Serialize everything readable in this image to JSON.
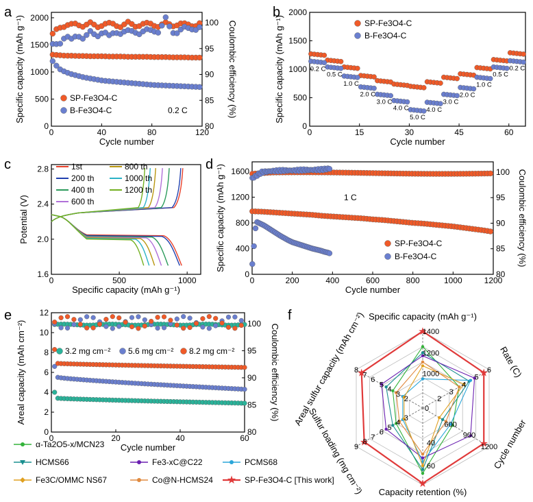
{
  "figure": {
    "panels": {
      "a": {
        "label": "a"
      },
      "b": {
        "label": "b"
      },
      "c": {
        "label": "c"
      },
      "d": {
        "label": "d"
      },
      "e": {
        "label": "e"
      },
      "f": {
        "label": "f"
      }
    },
    "legend_bottom": [
      {
        "text": "α-Ta2O5-x/MCN23",
        "color": "#33b33a",
        "marker": "circle"
      },
      {
        "text": "HCMS66",
        "color": "#1a8f8f",
        "marker": "triangle-down"
      },
      {
        "text": "Fe3-xC@C22",
        "color": "#6a1fb0",
        "marker": "circle"
      },
      {
        "text": "PCMS68",
        "color": "#2aa6d9",
        "marker": "circle"
      },
      {
        "text": "Fe3C/OMMC NS67",
        "color": "#e0a020",
        "marker": "diamond"
      },
      {
        "text": "Co@N-HCMS24",
        "color": "#e08a40",
        "marker": "circle"
      },
      {
        "text": "SP-Fe3O4-C [This work]",
        "color": "#e03a3a",
        "marker": "star"
      }
    ]
  },
  "chart_data": [
    {
      "id": "a",
      "type": "scatter",
      "xlabel": "Cycle number",
      "ylabel": "Specific capacity (mAh g⁻¹)",
      "y2label": "Coulombic efficiency (%)",
      "xlim": [
        0,
        120
      ],
      "ylim": [
        0,
        2100
      ],
      "y2lim": [
        80,
        102
      ],
      "xticks": [
        "0",
        "40",
        "80",
        "120"
      ],
      "yticks": [
        "0",
        "500",
        "1000",
        "1500",
        "2000"
      ],
      "y2ticks": [
        "80",
        "85",
        "90",
        "95",
        "100"
      ],
      "annotation": "0.2 C",
      "series": [
        {
          "name": "SP-Fe3O4-C",
          "color": "#f05a28",
          "x": [
            1,
            6,
            11,
            16,
            21,
            26,
            31,
            36,
            41,
            46,
            51,
            56,
            61,
            66,
            71,
            76,
            81,
            86,
            91,
            96,
            101,
            106,
            111,
            116,
            120
          ],
          "values": [
            1320,
            1310,
            1300,
            1300,
            1295,
            1295,
            1290,
            1290,
            1290,
            1285,
            1285,
            1285,
            1280,
            1280,
            1280,
            1280,
            1275,
            1275,
            1275,
            1270,
            1270,
            1270,
            1265,
            1265,
            1265
          ]
        },
        {
          "name": "B-Fe3O4-C",
          "color": "#6a7fcf",
          "x": [
            1,
            6,
            11,
            16,
            21,
            26,
            31,
            36,
            41,
            46,
            51,
            56,
            61,
            66,
            71,
            76,
            81,
            86,
            91,
            96,
            101,
            106,
            111,
            116,
            120
          ],
          "values": [
            1200,
            1060,
            1000,
            960,
            930,
            900,
            880,
            860,
            840,
            830,
            820,
            810,
            800,
            790,
            780,
            770,
            760,
            755,
            750,
            745,
            740,
            735,
            730,
            725,
            720
          ]
        },
        {
          "name": "SP-Fe3O4-C CE",
          "axis": "y2",
          "color": "#f05a28",
          "x": [
            1,
            6,
            11,
            16,
            21,
            26,
            31,
            36,
            41,
            46,
            51,
            56,
            61,
            66,
            71,
            76,
            81,
            86,
            91,
            96,
            101,
            106,
            111,
            116,
            120
          ],
          "values": [
            97.5,
            99.2,
            99.6,
            99.4,
            99.8,
            99.5,
            99.7,
            99.3,
            99.8,
            99.6,
            99.7,
            99.4,
            99.8,
            99.5,
            99.7,
            99.6,
            99.8,
            99.4,
            99.7,
            99.6,
            99.8,
            99.5,
            99.7,
            99.6,
            99.8
          ]
        },
        {
          "name": "B-Fe3O4-C CE",
          "axis": "y2",
          "color": "#6a7fcf",
          "x": [
            1,
            6,
            11,
            16,
            21,
            26,
            31,
            36,
            41,
            46,
            51,
            56,
            61,
            66,
            71,
            76,
            81,
            86,
            91,
            96,
            101,
            106,
            111,
            116,
            120
          ],
          "values": [
            95.5,
            96.0,
            97.5,
            96.5,
            97.8,
            97.0,
            98.0,
            97.6,
            98.3,
            97.2,
            98.5,
            97.9,
            98.2,
            98.6,
            97.8,
            98.4,
            98.8,
            98.1,
            100.7,
            98.5,
            98.0,
            98.9,
            99.2,
            98.6,
            99.0
          ]
        }
      ],
      "legend": [
        "SP-Fe3O4-C",
        "B-Fe3O4-C"
      ]
    },
    {
      "id": "b",
      "type": "scatter",
      "xlabel": "Cycle number",
      "ylabel": "Specific capacity (mAh g⁻¹)",
      "xlim": [
        0,
        65
      ],
      "ylim": [
        0,
        2000
      ],
      "xticks": [
        "0",
        "15",
        "30",
        "45",
        "60"
      ],
      "yticks": [
        "0",
        "500",
        "1000",
        "1500",
        "2000"
      ],
      "rates": [
        "0.2 C",
        "0.5 C",
        "1.0 C",
        "2.0 C",
        "3.0 C",
        "4.0 C",
        "5.0 C",
        "4.0 C",
        "3.0 C",
        "2.0 C",
        "1.0 C",
        "0.5 C",
        "0.2 C"
      ],
      "series": [
        {
          "name": "SP-Fe3O4-C",
          "color": "#f05a28",
          "segment_values": [
            1270,
            1160,
            1040,
            890,
            800,
            740,
            700,
            780,
            860,
            920,
            1030,
            1170,
            1290
          ]
        },
        {
          "name": "B-Fe3O4-C",
          "color": "#6a7fcf",
          "segment_values": [
            1140,
            1040,
            880,
            690,
            560,
            450,
            290,
            420,
            560,
            680,
            860,
            1040,
            1150
          ]
        }
      ],
      "legend": [
        "SP-Fe3O4-C",
        "B-Fe3O4-C"
      ]
    },
    {
      "id": "c",
      "type": "line",
      "xlabel": "Specific capacity (mAh g⁻¹)",
      "ylabel": "Potential (V)",
      "xlim": [
        0,
        1100
      ],
      "ylim": [
        1.6,
        2.85
      ],
      "xticks": [
        "0",
        "500",
        "1000"
      ],
      "yticks": [
        "1.6",
        "2.0",
        "2.4",
        "2.8"
      ],
      "series": [
        {
          "name": "1st",
          "color": "#e8402a",
          "capacity": 960
        },
        {
          "name": "200 th",
          "color": "#1f3fae",
          "capacity": 945
        },
        {
          "name": "400 th",
          "color": "#2a9a5a",
          "capacity": 860
        },
        {
          "name": "600 th",
          "color": "#b070d8",
          "capacity": 810
        },
        {
          "name": "800 th",
          "color": "#b8960e",
          "capacity": 760
        },
        {
          "name": "1000 th",
          "color": "#2ab2c6",
          "capacity": 720
        },
        {
          "name": "1200 th",
          "color": "#72b020",
          "capacity": 680
        }
      ]
    },
    {
      "id": "d",
      "type": "scatter",
      "xlabel": "Cycle number",
      "ylabel": "Specific capacity (mAh g⁻¹)",
      "y2label": "Coulombic efficiency (%)",
      "xlim": [
        0,
        1200
      ],
      "ylim": [
        0,
        1750
      ],
      "y2lim": [
        80,
        102
      ],
      "xticks": [
        "0",
        "200",
        "400",
        "600",
        "800",
        "1000",
        "1200"
      ],
      "yticks": [
        "0",
        "400",
        "800",
        "1200",
        "1600"
      ],
      "y2ticks": [
        "80",
        "85",
        "90",
        "95",
        "100"
      ],
      "annotation": "1 C",
      "series": [
        {
          "name": "SP-Fe3O4-C",
          "color": "#f05a28",
          "x": [
            1,
            50,
            100,
            150,
            200,
            250,
            300,
            350,
            400,
            450,
            500,
            550,
            600,
            650,
            700,
            750,
            800,
            850,
            900,
            950,
            1000,
            1050,
            1100,
            1150,
            1200
          ],
          "values": [
            980,
            975,
            965,
            955,
            945,
            935,
            925,
            910,
            900,
            890,
            880,
            870,
            855,
            845,
            830,
            815,
            800,
            790,
            775,
            760,
            745,
            725,
            705,
            685,
            660
          ]
        },
        {
          "name": "B-Fe3O4-C",
          "color": "#6a7fcf",
          "x": [
            1,
            20,
            40,
            60,
            80,
            100,
            120,
            140,
            160,
            180,
            200,
            220,
            240,
            260,
            280,
            300,
            320,
            340,
            360,
            380,
            390
          ],
          "values": [
            160,
            820,
            790,
            760,
            720,
            680,
            640,
            600,
            565,
            530,
            500,
            480,
            460,
            440,
            420,
            400,
            385,
            370,
            350,
            335,
            320
          ]
        },
        {
          "name": "SP-Fe3O4-C CE",
          "axis": "y2",
          "color": "#f05a28",
          "x": [
            1,
            100,
            200,
            300,
            400,
            500,
            600,
            700,
            800,
            900,
            1000,
            1100,
            1200
          ],
          "values": [
            99.6,
            99.8,
            99.8,
            99.8,
            99.8,
            99.8,
            99.8,
            99.8,
            99.8,
            99.8,
            99.8,
            99.8,
            99.8
          ]
        },
        {
          "name": "B-Fe3O4-C CE",
          "axis": "y2",
          "color": "#6a7fcf",
          "x": [
            1,
            50,
            100,
            150,
            200,
            250,
            300,
            350,
            390
          ],
          "values": [
            98.8,
            100.0,
            100.2,
            100.3,
            100.3,
            100.4,
            100.4,
            100.5,
            100.7
          ]
        }
      ],
      "legend": [
        "SP-Fe3O4-C",
        "B-Fe3O4-C"
      ]
    },
    {
      "id": "e",
      "type": "scatter",
      "xlabel": "Cycle number",
      "ylabel": "Areal capacity (mAh cm⁻²)",
      "y2label": "Coulombic efficiency (%)",
      "xlim": [
        0,
        60
      ],
      "ylim": [
        0,
        12
      ],
      "y2lim": [
        80,
        102
      ],
      "xticks": [
        "0",
        "20",
        "40",
        "60"
      ],
      "yticks": [
        "0",
        "2",
        "4",
        "6",
        "8",
        "10",
        "12"
      ],
      "y2ticks": [
        "80",
        "85",
        "90",
        "95",
        "100"
      ],
      "series": [
        {
          "name": "3.2 mg cm⁻²",
          "color": "#2ab39a",
          "start": 4.0,
          "first": 3.4,
          "end": 2.9
        },
        {
          "name": "5.6 mg cm⁻²",
          "color": "#6a7fcf",
          "start": 6.6,
          "first": 5.5,
          "end": 4.3
        },
        {
          "name": "8.2 mg cm⁻²",
          "color": "#f05a28",
          "start": 8.3,
          "first": 6.9,
          "end": 6.5
        }
      ],
      "legend": [
        "3.2 mg cm⁻²",
        "5.6 mg cm⁻²",
        "8.2 mg cm⁻²"
      ]
    },
    {
      "id": "f",
      "type": "radar",
      "axes": [
        "Specific capacity (mAh g⁻¹)",
        "Rate (C)",
        "Cycle number",
        "Capacity retention (%)",
        "Sulfur loading (mg cm⁻²)",
        "Areal sulfur capacity (mAh cm⁻²)"
      ],
      "axis_ticks": {
        "capacity": [
          "1000",
          "1200",
          "1400"
        ],
        "rate": [
          "2",
          "3",
          "4",
          "5",
          "6"
        ],
        "cycle": [
          "600",
          "900",
          "1200"
        ],
        "retention": [
          "40",
          "60"
        ],
        "loading": [
          "3",
          "4",
          "5",
          "6",
          "7",
          "8",
          "9"
        ],
        "areal": [
          "2",
          "3",
          "4",
          "5",
          "6",
          "7",
          "8"
        ],
        "center": "0"
      },
      "series": [
        {
          "name": "α-Ta2O5-x/MCN23",
          "color": "#33b33a",
          "values": [
            0.8,
            0.55,
            0.45,
            0.85,
            0.4,
            0.45
          ]
        },
        {
          "name": "HCMS66",
          "color": "#1a8f8f",
          "values": [
            0.72,
            0.7,
            0.3,
            0.8,
            0.45,
            0.55
          ]
        },
        {
          "name": "Fe3-xC@C22",
          "color": "#6a1fb0",
          "values": [
            0.68,
            0.78,
            0.72,
            0.65,
            0.55,
            0.62
          ]
        },
        {
          "name": "PCMS68",
          "color": "#2aa6d9",
          "values": [
            0.38,
            0.72,
            0.42,
            0.7,
            0.3,
            0.3
          ]
        },
        {
          "name": "Fe3C/OMMC NS67",
          "color": "#e0a020",
          "values": [
            0.55,
            0.62,
            0.25,
            0.75,
            0.28,
            0.28
          ]
        },
        {
          "name": "Co@N-HCMS24",
          "color": "#e08a40",
          "values": [
            0.6,
            0.55,
            0.35,
            0.6,
            0.35,
            0.4
          ]
        },
        {
          "name": "SP-Fe3O4-C [This work]",
          "color": "#e03a3a",
          "values": [
            1.0,
            0.92,
            0.92,
            0.98,
            0.88,
            0.92
          ]
        }
      ]
    }
  ]
}
